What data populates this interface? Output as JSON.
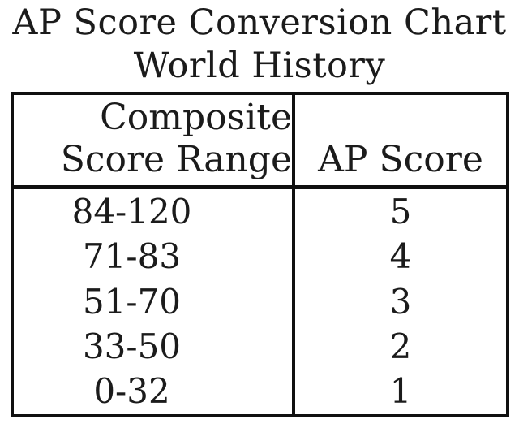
{
  "page": {
    "title_line1": "AP Score Conversion Chart",
    "title_line2": "World History"
  },
  "table": {
    "header": {
      "composite_line1": "Composite",
      "composite_line2": "Score Range",
      "ap": "AP Score"
    },
    "rows": [
      {
        "range": "84-120",
        "score": "5"
      },
      {
        "range": "71-83",
        "score": "4"
      },
      {
        "range": "51-70",
        "score": "3"
      },
      {
        "range": "33-50",
        "score": "2"
      },
      {
        "range": "0-32",
        "score": "1"
      }
    ]
  },
  "chart_data": {
    "type": "table",
    "title": "AP Score Conversion Chart World History",
    "columns": [
      "Composite Score Range",
      "AP Score"
    ],
    "rows": [
      [
        "84-120",
        5
      ],
      [
        "71-83",
        4
      ],
      [
        "51-70",
        3
      ],
      [
        "33-50",
        2
      ],
      [
        "0-32",
        1
      ]
    ]
  },
  "colors": {
    "text": "#1b1b1b",
    "border": "#101010",
    "background": "#ffffff"
  }
}
